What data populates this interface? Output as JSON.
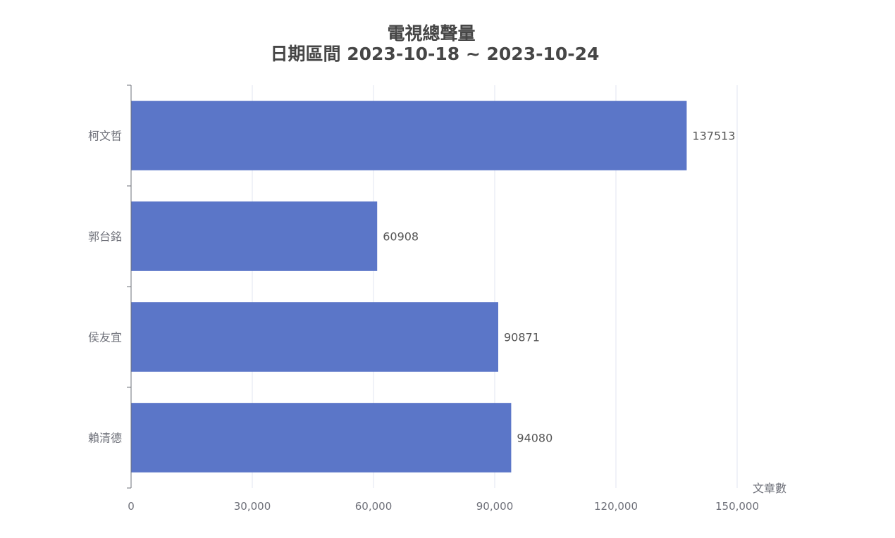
{
  "chart_data": {
    "type": "bar",
    "orientation": "horizontal",
    "title": "電視總聲量",
    "subtitle": "日期區間 2023-10-18 ~ 2023-10-24",
    "categories": [
      "柯文哲",
      "郭台銘",
      "侯友宜",
      "賴清德"
    ],
    "series": [
      {
        "values": [
          137513,
          60908,
          90871,
          94080
        ]
      }
    ],
    "xlabel": "文章數",
    "ylabel": "",
    "xlim": [
      0,
      150000
    ],
    "x_ticks": [
      0,
      30000,
      60000,
      90000,
      120000,
      150000
    ],
    "x_tick_labels": [
      "0",
      "30,000",
      "60,000",
      "90,000",
      "120,000",
      "150,000"
    ],
    "grid": true,
    "show_value_labels": true,
    "legend": "none",
    "colors": {
      "bar": "#5b76c8",
      "grid": "#e0e6f1",
      "axis": "#6e7079",
      "title": "#464646",
      "value_label": "#555555"
    }
  }
}
